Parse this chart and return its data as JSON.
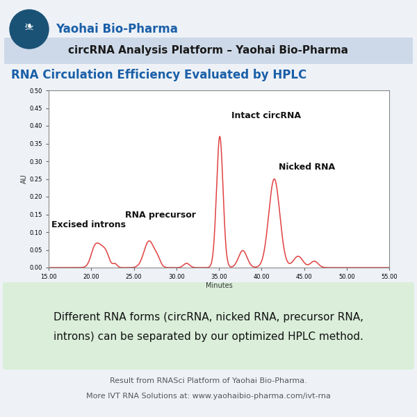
{
  "bg_color": "#eef2f7",
  "title_bar_color": "#cdd9e8",
  "title_text": "circRNA Analysis Platform – Yaohai Bio-Pharma",
  "subtitle_text": "RNA Circulation Efficiency Evaluated by HPLC",
  "subtitle_color": "#1a5fa8",
  "company_name": "Yaohai Bio-Pharma",
  "company_color": "#1a5fa8",
  "plot_line_color": "#e04040",
  "plot_bg": "#ffffff",
  "plot_border_color": "#888888",
  "xlabel": "Minutes",
  "ylabel": "AU",
  "xlim": [
    15,
    55
  ],
  "ylim": [
    0.0,
    0.5
  ],
  "xticks": [
    15,
    20,
    25,
    30,
    35,
    40,
    45,
    50,
    55
  ],
  "yticks": [
    0.0,
    0.05,
    0.1,
    0.15,
    0.2,
    0.25,
    0.3,
    0.35,
    0.4,
    0.45,
    0.5
  ],
  "green_box_text1": "Different RNA forms (circRNA, nicked RNA, precursor RNA,",
  "green_box_text2": "introns) can be separated by our optimized HPLC method.",
  "green_box_color": "#daeeda",
  "footer1": "Result from RNASci Platform of Yaohai Bio-Pharma.",
  "footer2": "More IVT RNA Solutions at: www.yaohaibio-pharma.com/ivt-rna",
  "logo_circle_color": "#1a5276",
  "ann_fontsize": 9,
  "title_fontsize": 11,
  "subtitle_fontsize": 12,
  "company_fontsize": 12
}
